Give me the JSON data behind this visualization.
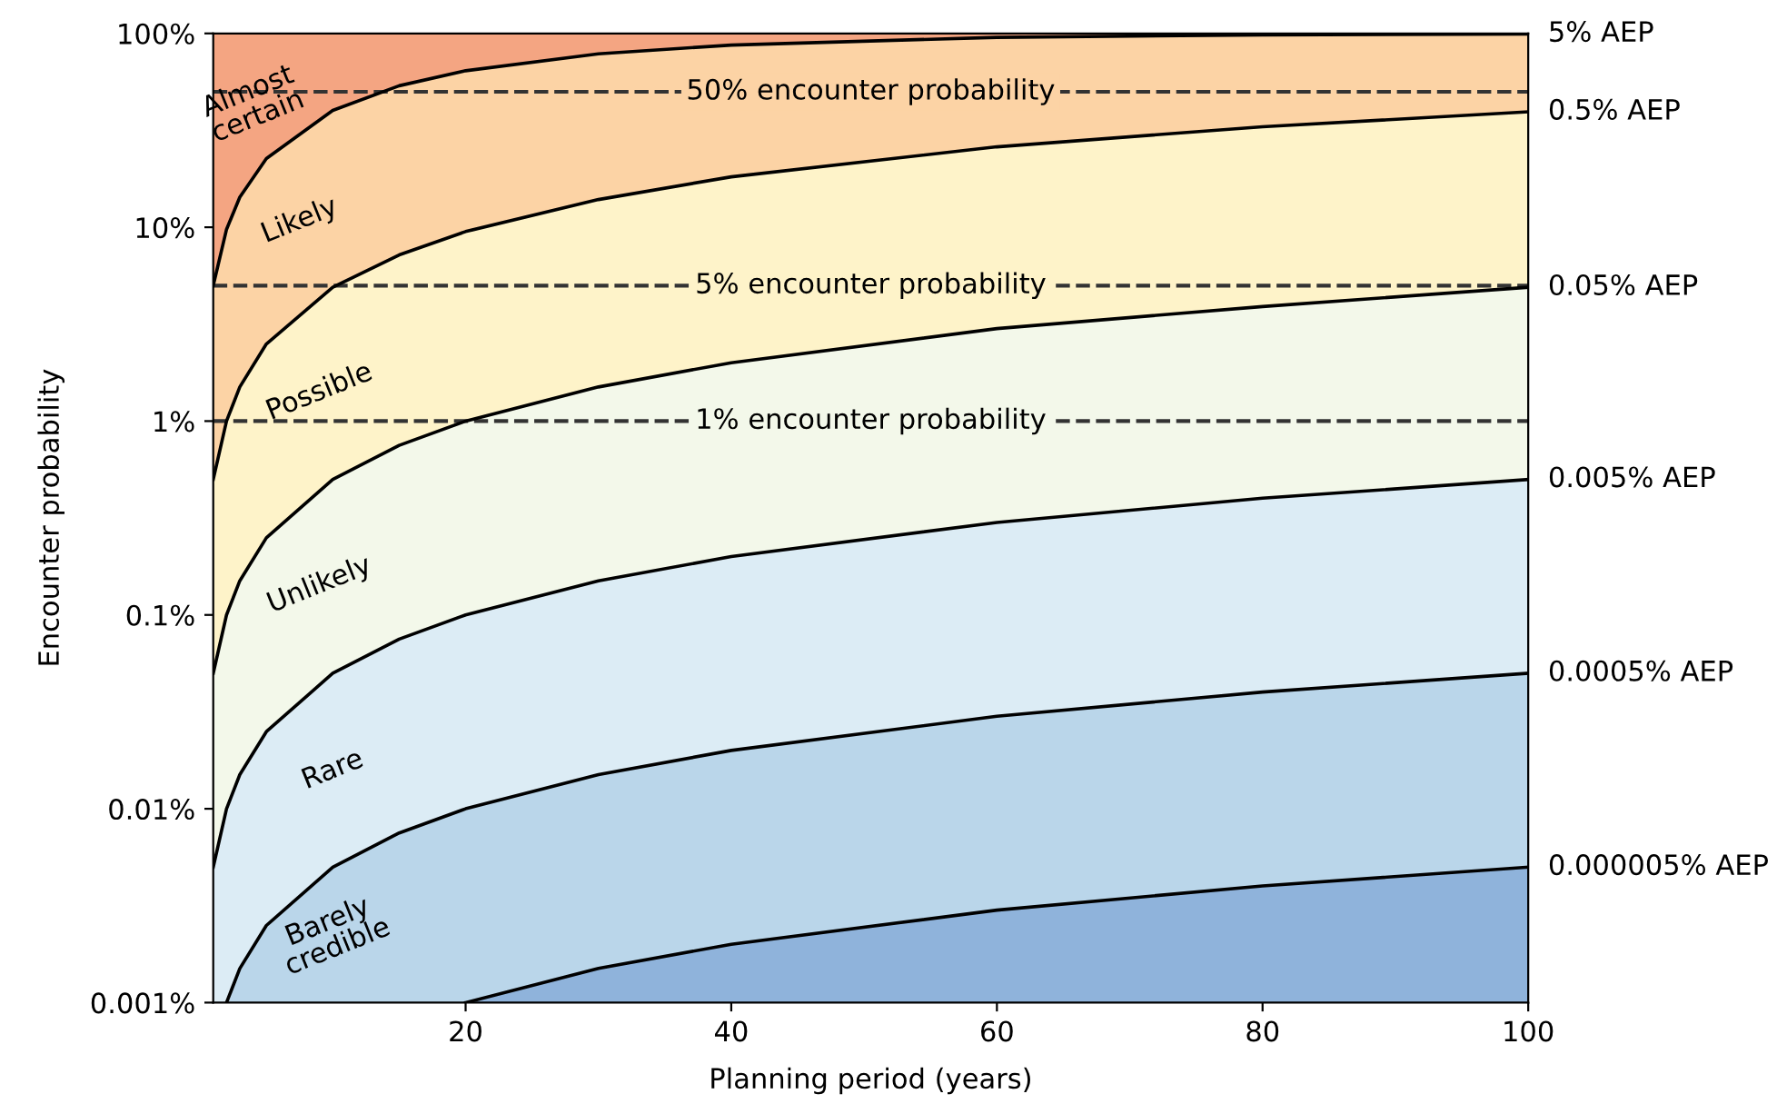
{
  "chart_data": {
    "type": "area",
    "xlabel": "Planning period (years)",
    "ylabel": "Encounter probability",
    "log": "y",
    "grid": false,
    "legend": false,
    "line_style": "solid",
    "marker": "none",
    "x": [
      1,
      2,
      3,
      5,
      10,
      15,
      20,
      30,
      40,
      60,
      80,
      100
    ],
    "xlim": [
      1,
      100
    ],
    "xticks": [
      20,
      40,
      60,
      80,
      100
    ],
    "ylim": [
      0.001,
      100
    ],
    "yticks": [
      {
        "value": 0.001,
        "label": "0.001%"
      },
      {
        "value": 0.01,
        "label": "0.01%"
      },
      {
        "value": 0.1,
        "label": "0.1%"
      },
      {
        "value": 1,
        "label": "1%"
      },
      {
        "value": 10,
        "label": "10%"
      },
      {
        "value": 100,
        "label": "100%"
      }
    ],
    "series": [
      {
        "name": "5% AEP",
        "color": "#fcd3a5",
        "values": [
          5,
          9.75,
          14.3,
          22.6,
          40.1,
          53.7,
          64.2,
          78.5,
          87.1,
          95.4,
          98.3,
          99.4
        ]
      },
      {
        "name": "0.5% AEP",
        "color": "#fef3c9",
        "values": [
          0.5,
          1.0,
          1.5,
          2.5,
          4.9,
          7.2,
          9.5,
          13.9,
          18.2,
          26.0,
          33.0,
          39.4
        ]
      },
      {
        "name": "0.05% AEP",
        "color": "#f3f8ea",
        "values": [
          0.05,
          0.1,
          0.15,
          0.25,
          0.5,
          0.75,
          1.0,
          1.5,
          2.0,
          3.0,
          3.9,
          4.9
        ]
      },
      {
        "name": "0.005% AEP",
        "color": "#dcecf5",
        "values": [
          0.005,
          0.01,
          0.015,
          0.025,
          0.05,
          0.075,
          0.1,
          0.15,
          0.2,
          0.3,
          0.4,
          0.5
        ]
      },
      {
        "name": "0.0005% AEP",
        "color": "#bad6ea",
        "values": [
          null,
          0.001,
          0.0015,
          0.0025,
          0.005,
          0.0075,
          0.01,
          0.015,
          0.02,
          0.03,
          0.04,
          0.05
        ]
      },
      {
        "name": "0.000005% AEP",
        "color": "#8fb3db",
        "values": [
          null,
          null,
          null,
          null,
          null,
          null,
          0.001,
          0.0015,
          0.002,
          0.003,
          0.004,
          0.005
        ]
      }
    ],
    "bands": [
      {
        "axis": "y",
        "from": 5,
        "to": 100,
        "color": "#f4a582"
      }
    ],
    "ref_lines": [
      {
        "axis": "y",
        "value": 50,
        "label": "50% encounter probability",
        "line_style": "dashed",
        "color": "#333333"
      },
      {
        "axis": "y",
        "value": 5,
        "label": "5% encounter probability",
        "line_style": "dashed",
        "color": "#333333"
      },
      {
        "axis": "y",
        "value": 1,
        "label": "1% encounter probability",
        "line_style": "dashed",
        "color": "#333333"
      }
    ],
    "annotations": [
      "Almost\ncertain",
      "Likely",
      "Possible",
      "Unlikely",
      "Rare",
      "Barely\ncredible"
    ]
  }
}
